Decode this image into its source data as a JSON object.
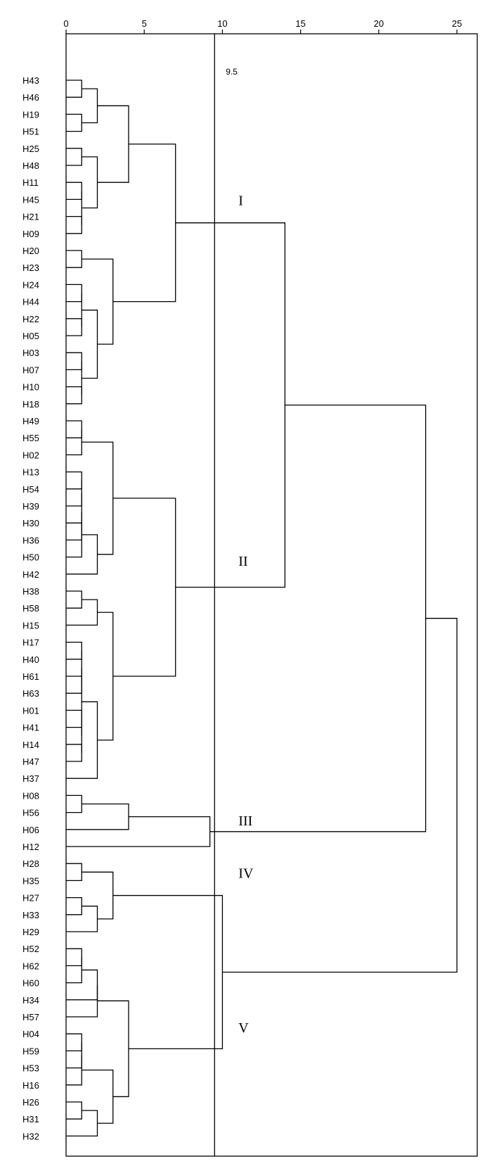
{
  "chart_data": {
    "type": "dendrogram",
    "orientation": "horizontal",
    "x_ticks": [
      0,
      5,
      10,
      15,
      20,
      25
    ],
    "xlim": [
      0,
      26.3
    ],
    "leaves": [
      "H43",
      "H46",
      "H19",
      "H51",
      "H25",
      "H48",
      "H11",
      "H45",
      "H21",
      "H09",
      "H20",
      "H23",
      "H24",
      "H44",
      "H22",
      "H05",
      "H03",
      "H07",
      "H10",
      "H18",
      "H49",
      "H55",
      "H02",
      "H13",
      "H54",
      "H39",
      "H30",
      "H36",
      "H50",
      "H42",
      "H38",
      "H58",
      "H15",
      "H17",
      "H40",
      "H61",
      "H63",
      "H01",
      "H41",
      "H14",
      "H47",
      "H37",
      "H08",
      "H56",
      "H06",
      "H12",
      "H28",
      "H35",
      "H27",
      "H33",
      "H29",
      "H52",
      "H62",
      "H60",
      "H34",
      "H57",
      "H04",
      "H59",
      "H53",
      "H16",
      "H26",
      "H31",
      "H32"
    ],
    "merges": [
      {
        "a": "H43",
        "b": "H46",
        "height": 1
      },
      {
        "a": "H19",
        "b": "H51",
        "height": 1
      },
      {
        "a": "m0",
        "b": "m1",
        "height": 2
      },
      {
        "a": "H25",
        "b": "H48",
        "height": 1
      },
      {
        "a": "H11",
        "b": "H45",
        "height": 1
      },
      {
        "a": "H21",
        "b": "H09",
        "height": 1
      },
      {
        "a": "m4",
        "b": "m5",
        "height": 1
      },
      {
        "a": "m3",
        "b": "m6",
        "height": 2
      },
      {
        "a": "m2",
        "b": "m7",
        "height": 4
      },
      {
        "a": "H20",
        "b": "H23",
        "height": 1
      },
      {
        "a": "H24",
        "b": "H44",
        "height": 1
      },
      {
        "a": "H22",
        "b": "H05",
        "height": 1
      },
      {
        "a": "m10",
        "b": "m11",
        "height": 1
      },
      {
        "a": "H03",
        "b": "H07",
        "height": 1
      },
      {
        "a": "H10",
        "b": "H18",
        "height": 1
      },
      {
        "a": "m13",
        "b": "m14",
        "height": 1
      },
      {
        "a": "m12",
        "b": "m15",
        "height": 2
      },
      {
        "a": "m9",
        "b": "m16",
        "height": 3
      },
      {
        "a": "m8",
        "b": "m17",
        "height": 7
      },
      {
        "a": "H49",
        "b": "H55",
        "height": 1
      },
      {
        "a": "m19",
        "b": "H02",
        "height": 1
      },
      {
        "a": "H13",
        "b": "H54",
        "height": 1
      },
      {
        "a": "m21",
        "b": "H39",
        "height": 1
      },
      {
        "a": "H30",
        "b": "H36",
        "height": 1
      },
      {
        "a": "m22",
        "b": "m23",
        "height": 1
      },
      {
        "a": "m24",
        "b": "H50",
        "height": 1
      },
      {
        "a": "m25",
        "b": "H42",
        "height": 2
      },
      {
        "a": "m20",
        "b": "m26",
        "height": 3
      },
      {
        "a": "H38",
        "b": "H58",
        "height": 1
      },
      {
        "a": "m28",
        "b": "H15",
        "height": 2
      },
      {
        "a": "H17",
        "b": "H40",
        "height": 1
      },
      {
        "a": "H61",
        "b": "H63",
        "height": 1
      },
      {
        "a": "m30",
        "b": "m31",
        "height": 1
      },
      {
        "a": "H01",
        "b": "H41",
        "height": 1
      },
      {
        "a": "H14",
        "b": "H47",
        "height": 1
      },
      {
        "a": "m33",
        "b": "m34",
        "height": 1
      },
      {
        "a": "m32",
        "b": "m35",
        "height": 1
      },
      {
        "a": "m36",
        "b": "H37",
        "height": 2
      },
      {
        "a": "m29",
        "b": "m37",
        "height": 3
      },
      {
        "a": "m27",
        "b": "m38",
        "height": 7
      },
      {
        "a": "m18",
        "b": "m39",
        "height": 14
      },
      {
        "a": "H08",
        "b": "H56",
        "height": 1
      },
      {
        "a": "m41",
        "b": "H06",
        "height": 4
      },
      {
        "a": "m42",
        "b": "H12",
        "height": 9.2
      },
      {
        "a": "m40",
        "b": "m43",
        "height": 23
      },
      {
        "a": "H28",
        "b": "H35",
        "height": 1
      },
      {
        "a": "H27",
        "b": "H33",
        "height": 1
      },
      {
        "a": "m46",
        "b": "H29",
        "height": 2
      },
      {
        "a": "m45",
        "b": "m47",
        "height": 3
      },
      {
        "a": "H52",
        "b": "H62",
        "height": 1
      },
      {
        "a": "m49",
        "b": "H60",
        "height": 1
      },
      {
        "a": "m50",
        "b": "H34",
        "height": 2
      },
      {
        "a": "m51",
        "b": "H57",
        "height": 2
      },
      {
        "a": "H04",
        "b": "H59",
        "height": 1
      },
      {
        "a": "m53",
        "b": "H53",
        "height": 1
      },
      {
        "a": "m54",
        "b": "H16",
        "height": 1
      },
      {
        "a": "H26",
        "b": "H31",
        "height": 1
      },
      {
        "a": "m56",
        "b": "H32",
        "height": 2
      },
      {
        "a": "m55",
        "b": "m57",
        "height": 3
      },
      {
        "a": "m52",
        "b": "m58",
        "height": 4
      },
      {
        "a": "m48",
        "b": "m59",
        "height": 10
      },
      {
        "a": "m44",
        "b": "m60",
        "height": 25
      }
    ],
    "cut_line": {
      "value": 9.5,
      "label": "9.5"
    },
    "clusters": [
      {
        "label": "I",
        "near_leaf": "H21"
      },
      {
        "label": "II",
        "near_leaf": "H42"
      },
      {
        "label": "III",
        "near_leaf": "H06"
      },
      {
        "label": "IV",
        "near_leaf": "H35"
      },
      {
        "label": "V",
        "near_leaf": "H04"
      }
    ]
  }
}
